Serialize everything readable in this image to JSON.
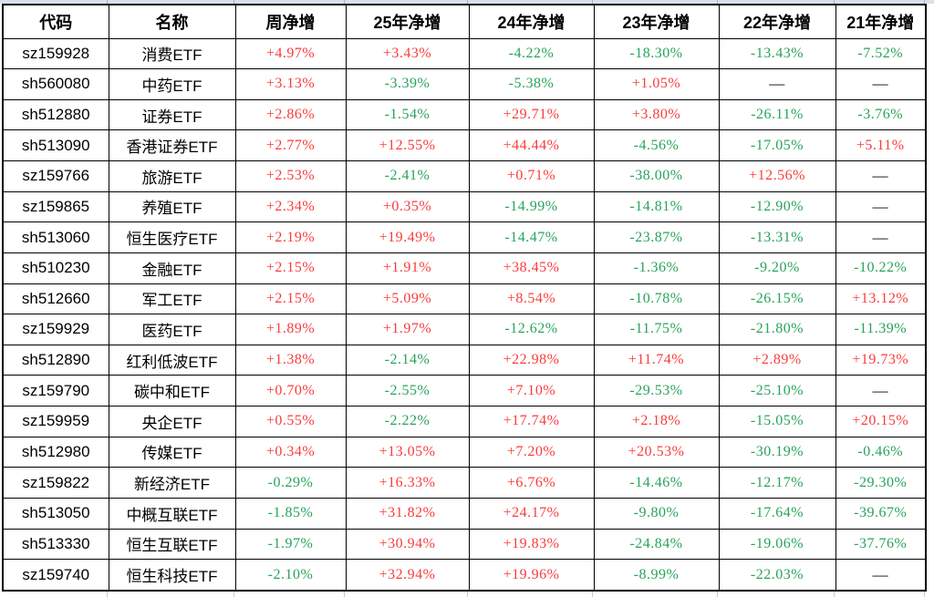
{
  "colors": {
    "up_red": "#fa3b3b",
    "down_green": "#28a35a",
    "neutral_black": "#000000",
    "grid_black": "#000000",
    "top_strip_blue": "#d9e0ea"
  },
  "table": {
    "columns": [
      "代码",
      "名称",
      "周净增",
      "25年净增",
      "24年净增",
      "23年净增",
      "22年净增",
      "21年净增"
    ],
    "rows": [
      {
        "code": "sz159928",
        "name": "消费ETF",
        "values": [
          "+4.97%",
          "+3.43%",
          "-4.22%",
          "-18.30%",
          "-13.43%",
          "-7.52%"
        ]
      },
      {
        "code": "sh560080",
        "name": "中药ETF",
        "values": [
          "+3.13%",
          "-3.39%",
          "-5.38%",
          "+1.05%",
          "—",
          "—"
        ]
      },
      {
        "code": "sh512880",
        "name": "证券ETF",
        "values": [
          "+2.86%",
          "-1.54%",
          "+29.71%",
          "+3.80%",
          "-26.11%",
          "-3.76%"
        ]
      },
      {
        "code": "sh513090",
        "name": "香港证券ETF",
        "values": [
          "+2.77%",
          "+12.55%",
          "+44.44%",
          "-4.56%",
          "-17.05%",
          "+5.11%"
        ]
      },
      {
        "code": "sz159766",
        "name": "旅游ETF",
        "values": [
          "+2.53%",
          "-2.41%",
          "+0.71%",
          "-38.00%",
          "+12.56%",
          "—"
        ]
      },
      {
        "code": "sz159865",
        "name": "养殖ETF",
        "values": [
          "+2.34%",
          "+0.35%",
          "-14.99%",
          "-14.81%",
          "-12.90%",
          "—"
        ]
      },
      {
        "code": "sh513060",
        "name": "恒生医疗ETF",
        "values": [
          "+2.19%",
          "+19.49%",
          "-14.47%",
          "-23.87%",
          "-13.31%",
          "—"
        ]
      },
      {
        "code": "sh510230",
        "name": "金融ETF",
        "values": [
          "+2.15%",
          "+1.91%",
          "+38.45%",
          "-1.36%",
          "-9.20%",
          "-10.22%"
        ]
      },
      {
        "code": "sh512660",
        "name": "军工ETF",
        "values": [
          "+2.15%",
          "+5.09%",
          "+8.54%",
          "-10.78%",
          "-26.15%",
          "+13.12%"
        ]
      },
      {
        "code": "sz159929",
        "name": "医药ETF",
        "values": [
          "+1.89%",
          "+1.97%",
          "-12.62%",
          "-11.75%",
          "-21.80%",
          "-11.39%"
        ]
      },
      {
        "code": "sh512890",
        "name": "红利低波ETF",
        "values": [
          "+1.38%",
          "-2.14%",
          "+22.98%",
          "+11.74%",
          "+2.89%",
          "+19.73%"
        ]
      },
      {
        "code": "sz159790",
        "name": "碳中和ETF",
        "values": [
          "+0.70%",
          "-2.55%",
          "+7.10%",
          "-29.53%",
          "-25.10%",
          "—"
        ]
      },
      {
        "code": "sz159959",
        "name": "央企ETF",
        "values": [
          "+0.55%",
          "-2.22%",
          "+17.74%",
          "+2.18%",
          "-15.05%",
          "+20.15%"
        ]
      },
      {
        "code": "sh512980",
        "name": "传媒ETF",
        "values": [
          "+0.34%",
          "+13.05%",
          "+7.20%",
          "+20.53%",
          "-30.19%",
          "-0.46%"
        ]
      },
      {
        "code": "sz159822",
        "name": "新经济ETF",
        "values": [
          "-0.29%",
          "+16.33%",
          "+6.76%",
          "-14.46%",
          "-12.17%",
          "-29.30%"
        ]
      },
      {
        "code": "sh513050",
        "name": "中概互联ETF",
        "values": [
          "-1.85%",
          "+31.82%",
          "+24.17%",
          "-9.80%",
          "-17.64%",
          "-39.67%"
        ]
      },
      {
        "code": "sh513330",
        "name": "恒生互联ETF",
        "values": [
          "-1.97%",
          "+30.94%",
          "+19.83%",
          "-24.84%",
          "-19.06%",
          "-37.76%"
        ]
      },
      {
        "code": "sz159740",
        "name": "恒生科技ETF",
        "values": [
          "-2.10%",
          "+32.94%",
          "+19.96%",
          "-8.99%",
          "-22.03%",
          "—"
        ]
      }
    ]
  }
}
